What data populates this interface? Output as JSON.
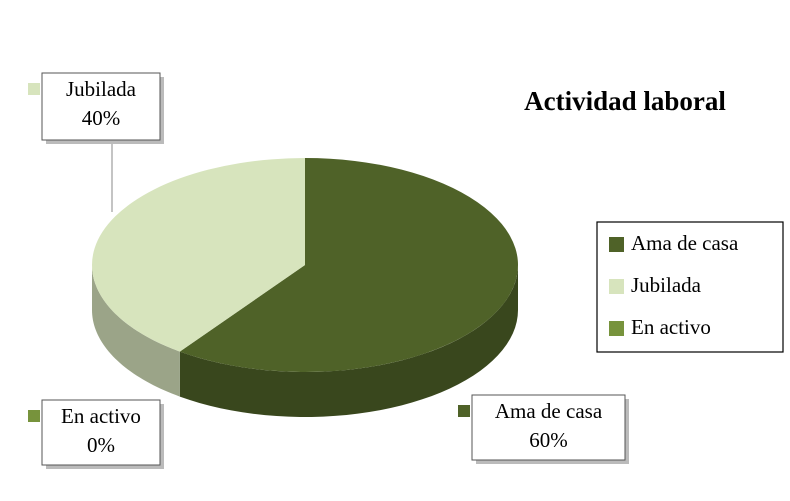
{
  "chart_data": {
    "type": "pie",
    "title": "Actividad laboral",
    "categories": [
      "Ama de casa",
      "Jubilada",
      "En activo"
    ],
    "values": [
      60,
      40,
      0
    ],
    "value_labels": [
      "60%",
      "40%",
      "0%"
    ],
    "colors": [
      "#4f6228",
      "#d7e4bd",
      "#77933c"
    ],
    "legend": "right"
  }
}
